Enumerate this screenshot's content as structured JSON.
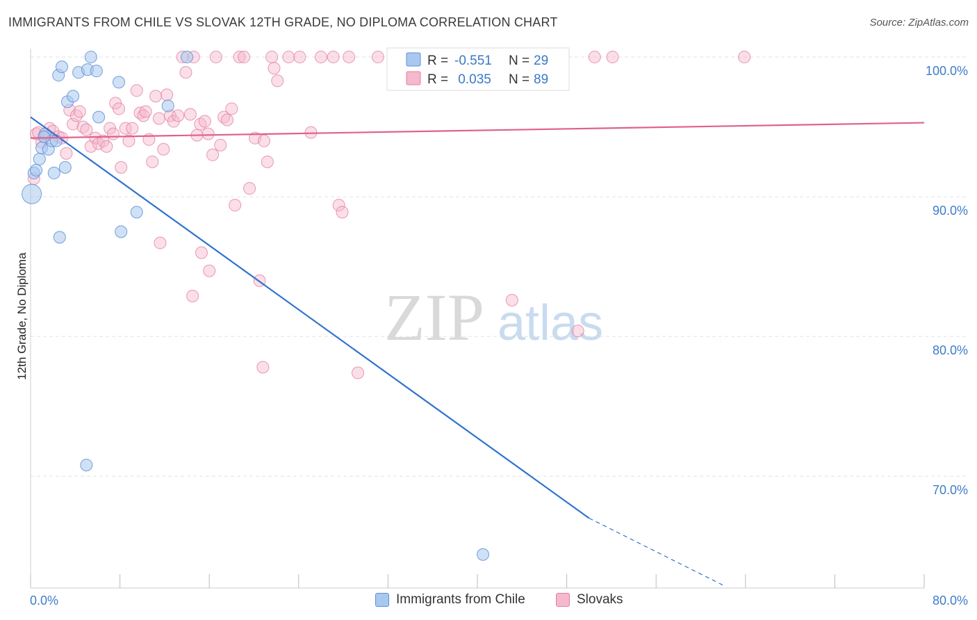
{
  "header": {
    "title": "IMMIGRANTS FROM CHILE VS SLOVAK 12TH GRADE, NO DIPLOMA CORRELATION CHART",
    "source": "Source: ZipAtlas.com"
  },
  "watermark": {
    "zip": "ZIP",
    "atlas": "atlas"
  },
  "colors": {
    "blue_fill": "#a9c8ef",
    "blue_stroke": "#5b8fd6",
    "blue_line": "#2f72cf",
    "pink_fill": "#f5b8cc",
    "pink_stroke": "#e57fa0",
    "pink_line": "#e0608c",
    "tick_text": "#3e7cc9",
    "grid": "#e2e2e2"
  },
  "legend": {
    "rows": [
      {
        "r_label": "R =",
        "r_value": "-0.551",
        "n_label": "N =",
        "n_value": "29"
      },
      {
        "r_label": "R =",
        "r_value": " 0.035",
        "n_label": "N =",
        "n_value": "89"
      }
    ]
  },
  "bottom_legend": [
    "Immigrants from Chile",
    "Slovaks"
  ],
  "chart_data": {
    "type": "scatter",
    "title": "IMMIGRANTS FROM CHILE VS SLOVAK 12TH GRADE, NO DIPLOMA CORRELATION CHART",
    "xlabel": "",
    "ylabel": "12th Grade, No Diploma",
    "xlim": [
      0,
      80
    ],
    "ylim": [
      62,
      100.6
    ],
    "x_tick_labels": [
      "0.0%",
      "80.0%"
    ],
    "y_ticks": [
      70,
      80,
      90,
      100
    ],
    "y_tick_labels": [
      "70.0%",
      "80.0%",
      "90.0%",
      "100.0%"
    ],
    "grid": true,
    "legend_position": "top-center",
    "series": [
      {
        "name": "Immigrants from Chile",
        "color": "#a9c8ef",
        "R": -0.551,
        "N": 29,
        "trend": {
          "x": [
            0,
            50
          ],
          "y": [
            95.7,
            67.0
          ],
          "dashed_to": [
            62,
            62.2
          ]
        },
        "points": [
          [
            0.1,
            90.2
          ],
          [
            0.3,
            91.7
          ],
          [
            0.5,
            91.9
          ],
          [
            0.8,
            92.7
          ],
          [
            1.0,
            93.5
          ],
          [
            1.3,
            94.5
          ],
          [
            1.6,
            93.4
          ],
          [
            1.9,
            94.0
          ],
          [
            2.1,
            91.7
          ],
          [
            2.3,
            94.0
          ],
          [
            2.5,
            98.7
          ],
          [
            2.8,
            99.3
          ],
          [
            3.1,
            92.1
          ],
          [
            3.3,
            96.8
          ],
          [
            3.8,
            97.2
          ],
          [
            4.3,
            98.9
          ],
          [
            5.1,
            99.1
          ],
          [
            5.4,
            100.0
          ],
          [
            5.9,
            99.0
          ],
          [
            6.1,
            95.7
          ],
          [
            7.9,
            98.2
          ],
          [
            8.1,
            87.5
          ],
          [
            9.5,
            88.9
          ],
          [
            12.3,
            96.5
          ],
          [
            14.0,
            100.0
          ],
          [
            2.6,
            87.1
          ],
          [
            5.0,
            70.8
          ],
          [
            40.5,
            64.4
          ],
          [
            1.2,
            94.3
          ]
        ]
      },
      {
        "name": "Slovaks",
        "color": "#f5b8cc",
        "R": 0.035,
        "N": 89,
        "trend": {
          "x": [
            0,
            80
          ],
          "y": [
            94.2,
            95.3
          ]
        },
        "points": [
          [
            0.3,
            91.3
          ],
          [
            0.5,
            94.5
          ],
          [
            0.7,
            94.6
          ],
          [
            1.0,
            93.9
          ],
          [
            1.3,
            94.3
          ],
          [
            1.7,
            94.9
          ],
          [
            2.0,
            94.7
          ],
          [
            2.5,
            94.3
          ],
          [
            2.8,
            94.2
          ],
          [
            3.2,
            93.1
          ],
          [
            3.5,
            96.2
          ],
          [
            3.8,
            95.2
          ],
          [
            4.1,
            95.8
          ],
          [
            4.4,
            96.1
          ],
          [
            4.7,
            95.0
          ],
          [
            5.0,
            94.8
          ],
          [
            5.4,
            93.6
          ],
          [
            5.8,
            94.2
          ],
          [
            6.1,
            93.8
          ],
          [
            6.5,
            94.0
          ],
          [
            6.8,
            93.6
          ],
          [
            7.1,
            94.9
          ],
          [
            7.4,
            94.5
          ],
          [
            7.6,
            96.7
          ],
          [
            7.9,
            96.3
          ],
          [
            8.1,
            92.1
          ],
          [
            8.5,
            94.9
          ],
          [
            8.8,
            94.0
          ],
          [
            9.1,
            94.9
          ],
          [
            9.5,
            97.6
          ],
          [
            9.8,
            96.0
          ],
          [
            10.1,
            95.8
          ],
          [
            10.3,
            96.1
          ],
          [
            10.6,
            94.1
          ],
          [
            10.9,
            92.5
          ],
          [
            11.2,
            97.2
          ],
          [
            11.5,
            95.6
          ],
          [
            11.9,
            93.4
          ],
          [
            12.2,
            97.3
          ],
          [
            12.5,
            95.8
          ],
          [
            12.8,
            95.4
          ],
          [
            13.2,
            95.8
          ],
          [
            13.6,
            100.0
          ],
          [
            13.9,
            98.9
          ],
          [
            14.3,
            95.9
          ],
          [
            14.6,
            100.0
          ],
          [
            14.9,
            94.4
          ],
          [
            15.2,
            95.2
          ],
          [
            15.6,
            95.4
          ],
          [
            15.9,
            94.5
          ],
          [
            16.3,
            93.0
          ],
          [
            16.6,
            100.0
          ],
          [
            17.0,
            93.7
          ],
          [
            17.3,
            95.7
          ],
          [
            17.6,
            95.5
          ],
          [
            18.0,
            96.3
          ],
          [
            18.3,
            89.4
          ],
          [
            18.7,
            100.0
          ],
          [
            19.1,
            100.0
          ],
          [
            19.6,
            90.6
          ],
          [
            20.1,
            94.2
          ],
          [
            20.5,
            84.0
          ],
          [
            20.9,
            94.0
          ],
          [
            21.2,
            92.5
          ],
          [
            21.6,
            100.0
          ],
          [
            21.8,
            99.2
          ],
          [
            22.1,
            98.3
          ],
          [
            23.1,
            100.0
          ],
          [
            24.1,
            100.0
          ],
          [
            25.1,
            94.6
          ],
          [
            26.0,
            100.0
          ],
          [
            27.1,
            100.0
          ],
          [
            27.6,
            89.4
          ],
          [
            27.9,
            88.9
          ],
          [
            28.5,
            100.0
          ],
          [
            29.3,
            77.4
          ],
          [
            31.1,
            100.0
          ],
          [
            32.8,
            100.0
          ],
          [
            35.1,
            100.0
          ],
          [
            38.0,
            100.0
          ],
          [
            40.0,
            100.0
          ],
          [
            43.1,
            82.6
          ],
          [
            49.0,
            80.4
          ],
          [
            50.5,
            100.0
          ],
          [
            52.1,
            100.0
          ],
          [
            63.9,
            100.0
          ],
          [
            11.6,
            86.7
          ],
          [
            15.3,
            86.0
          ],
          [
            16.0,
            84.7
          ],
          [
            14.5,
            82.9
          ],
          [
            20.8,
            77.8
          ]
        ]
      }
    ]
  }
}
